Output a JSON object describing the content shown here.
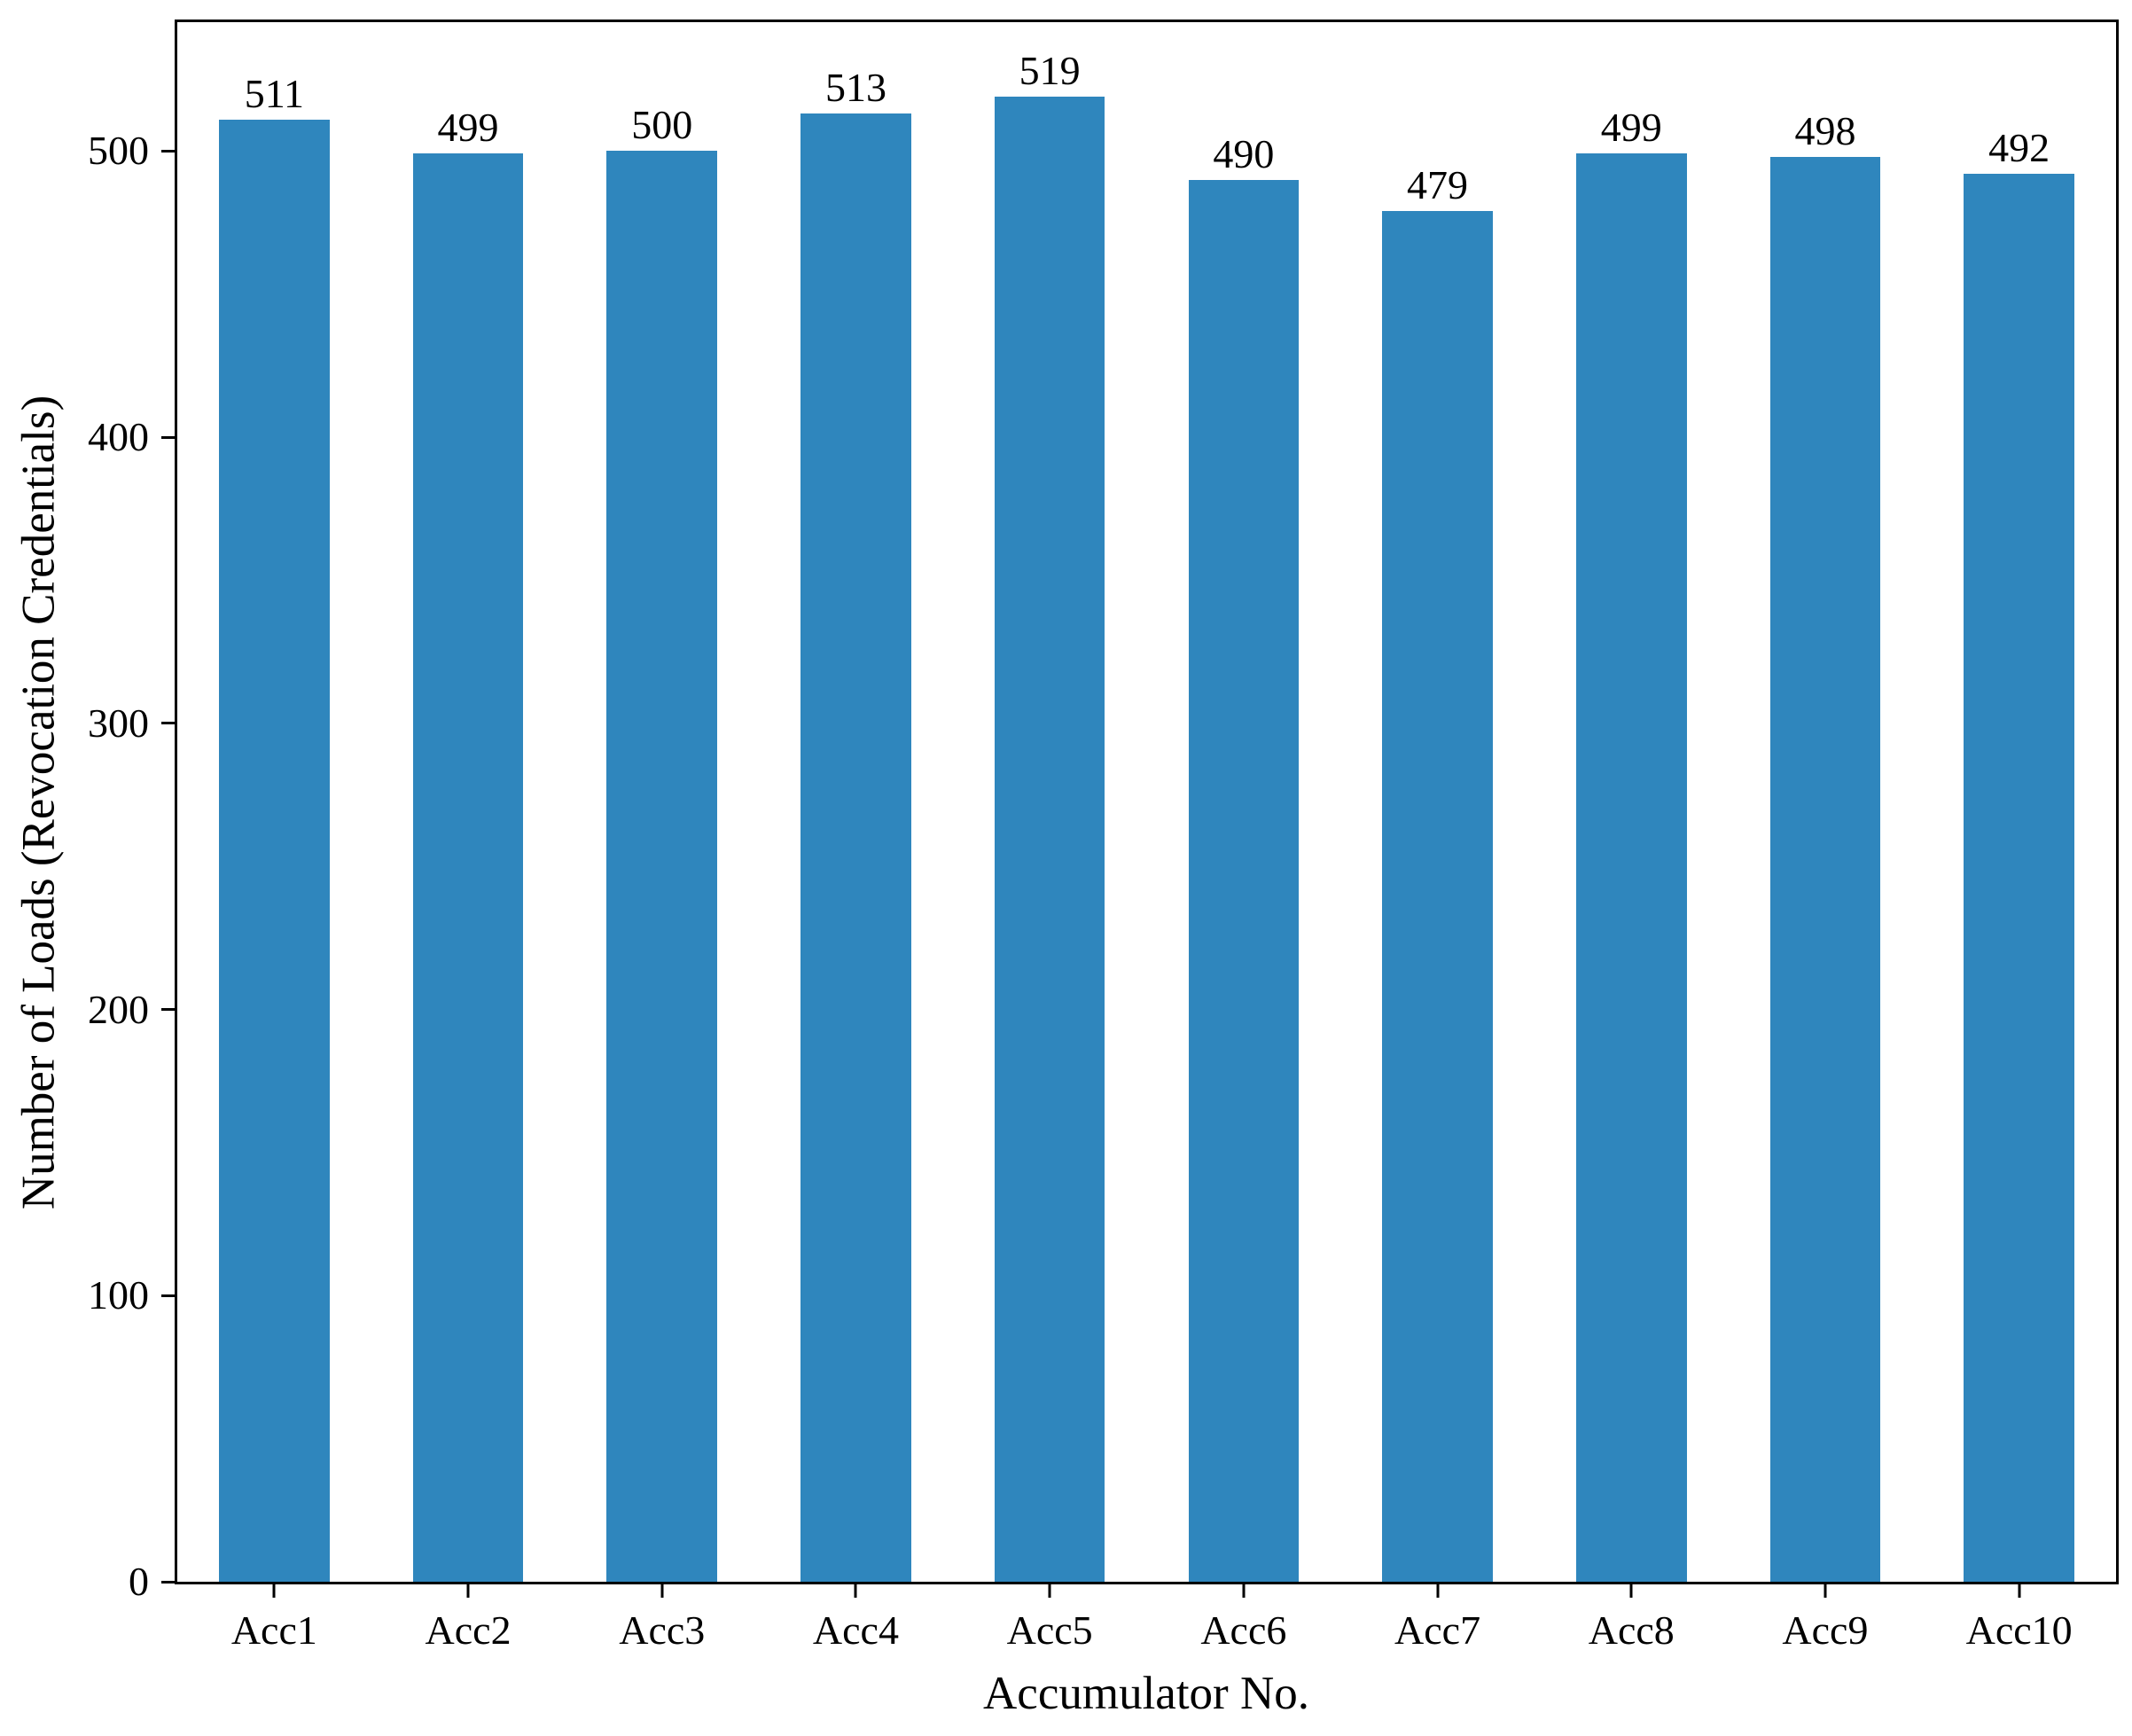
{
  "chart_data": {
    "type": "bar",
    "categories": [
      "Acc1",
      "Acc2",
      "Acc3",
      "Acc4",
      "Acc5",
      "Acc6",
      "Acc7",
      "Acc8",
      "Acc9",
      "Acc10"
    ],
    "values": [
      511,
      499,
      500,
      513,
      519,
      490,
      479,
      499,
      498,
      492
    ],
    "title": "",
    "xlabel": "Accumulator No.",
    "ylabel": "Number of Loads (Revocation Credentials)",
    "ylim": [
      0,
      545
    ],
    "yticks": [
      0,
      100,
      200,
      300,
      400,
      500
    ],
    "bar_color": "#2f86bd",
    "bar_width_fraction": 0.57,
    "value_labels_shown": true,
    "grid": false,
    "legend_position": "none",
    "frame": "full-box"
  }
}
